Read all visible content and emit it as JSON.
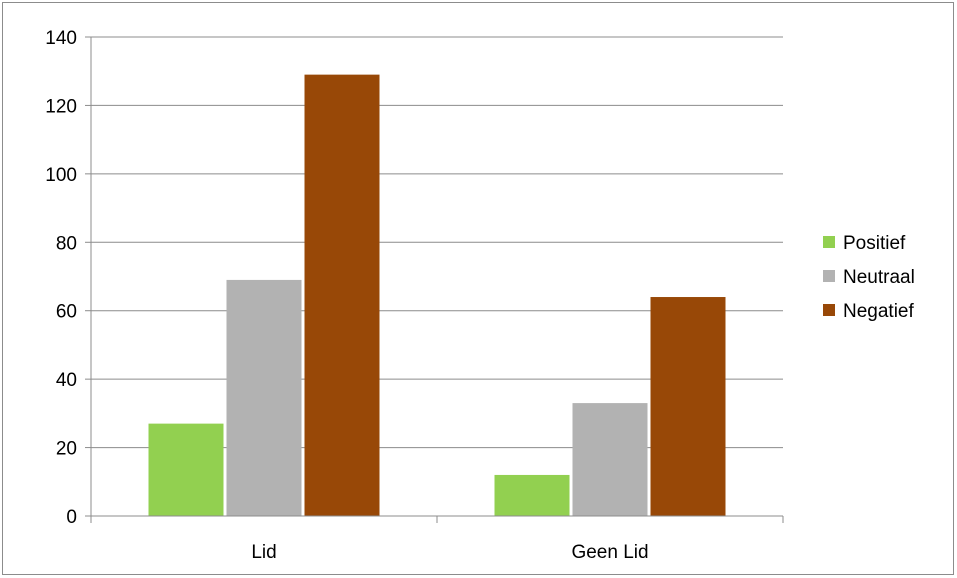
{
  "chart_data": {
    "type": "bar",
    "title": "",
    "xlabel": "",
    "ylabel": "",
    "categories": [
      "Lid",
      "Geen Lid"
    ],
    "series": [
      {
        "name": "Positief",
        "values": [
          27,
          12
        ],
        "color": "#92d050"
      },
      {
        "name": "Neutraal",
        "values": [
          69,
          33
        ],
        "color": "#b2b2b2"
      },
      {
        "name": "Negatief",
        "values": [
          129,
          64
        ],
        "color": "#984807"
      }
    ],
    "ylim": [
      0,
      140
    ],
    "yticks": [
      0,
      20,
      40,
      60,
      80,
      100,
      120,
      140
    ],
    "grid": true,
    "legend_position": "right"
  }
}
